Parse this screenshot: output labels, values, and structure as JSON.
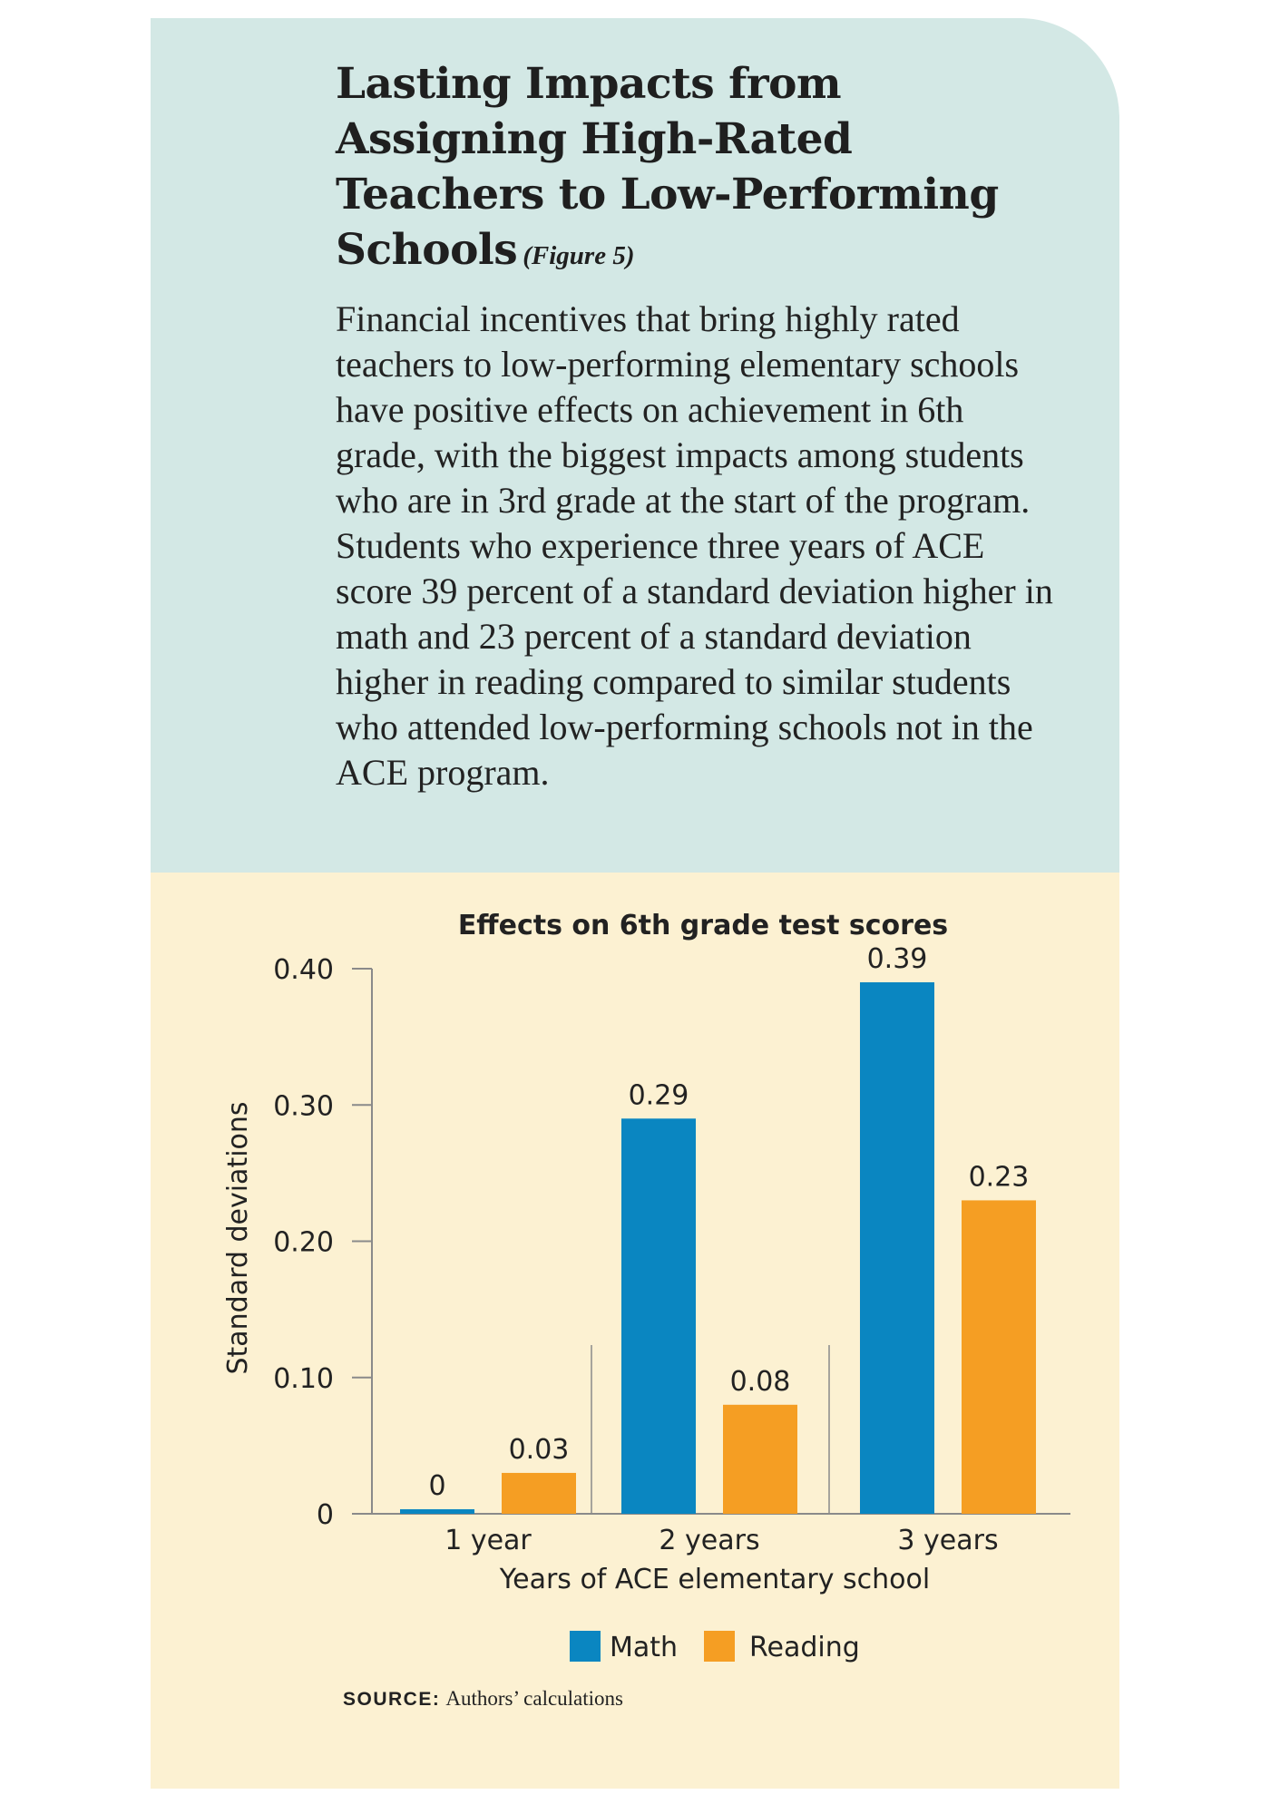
{
  "header": {
    "title": "Lasting Impacts from Assigning High-Rated Teachers to Low-Performing Schools",
    "figure_label": "(Figure 5)",
    "description": "Financial incentives that bring highly rated teachers to low-performing elementary schools have positive effects on achievement in 6th grade, with the biggest impacts among students who are in 3rd grade at the start of the program. Students who experience three years of ACE score 39 percent of a standard deviation higher in math and 23 percent of a standard deviation higher in reading compared to similar students who attended low-performing schools not in the ACE program."
  },
  "colors": {
    "top_bg": "#d3e8e5",
    "bottom_bg": "#fcf1d2",
    "math": "#0a86c1",
    "reading": "#f59e23",
    "axis": "#8a8a8a"
  },
  "chart_data": {
    "type": "bar",
    "title": "Effects on 6th grade test scores",
    "xlabel": "Years of ACE elementary school",
    "ylabel": "Standard deviations",
    "categories": [
      "1 year",
      "2 years",
      "3 years"
    ],
    "series": [
      {
        "name": "Math",
        "values": [
          0,
          0.29,
          0.39
        ],
        "labels": [
          "0",
          "0.29",
          "0.39"
        ]
      },
      {
        "name": "Reading",
        "values": [
          0.03,
          0.08,
          0.23
        ],
        "labels": [
          "0.03",
          "0.08",
          "0.23"
        ]
      }
    ],
    "ylim": [
      0,
      0.4
    ],
    "yticks": [
      0,
      0.1,
      0.2,
      0.3,
      0.4
    ],
    "ytick_labels": [
      "0",
      "0.10",
      "0.20",
      "0.30",
      "0.40"
    ],
    "grid": false,
    "legend": "bottom-center"
  },
  "source": {
    "label": "SOURCE:",
    "text": "Authors’ calculations"
  }
}
